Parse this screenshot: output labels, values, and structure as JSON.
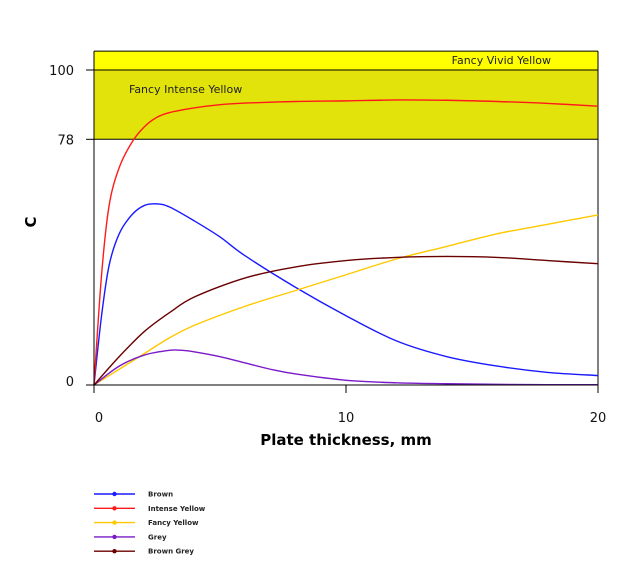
{
  "chart_data": {
    "type": "line",
    "xlabel": "Plate thickness, mm",
    "ylabel": "C",
    "xlim": [
      0,
      20
    ],
    "ylim": [
      0,
      110
    ],
    "x_ticks": [
      0,
      10,
      20
    ],
    "y_ticks": [
      0,
      78,
      100
    ],
    "bands": [
      {
        "label": "Fancy Vivid Yellow",
        "from": 100,
        "to": 106,
        "color": "#ffff00"
      },
      {
        "label": "Fancy Intense Yellow",
        "from": 78,
        "to": 100,
        "color": "#e3e30c"
      }
    ],
    "series": [
      {
        "name": "Brown",
        "color": "#1a1aff",
        "x": [
          0,
          0.3,
          0.6,
          1.0,
          1.5,
          2.0,
          2.5,
          3.0,
          4.0,
          5.0,
          6.0,
          8.0,
          10.0,
          12.0,
          14.0,
          16.0,
          18.0,
          20.0
        ],
        "y": [
          0,
          22,
          38,
          48,
          54,
          57,
          57.5,
          56.5,
          52,
          47,
          41,
          31,
          22,
          14,
          9,
          6,
          4,
          3
        ]
      },
      {
        "name": "Intense Yellow",
        "color": "#ff1a1a",
        "x": [
          0,
          0.3,
          0.6,
          1.0,
          1.5,
          2.0,
          2.5,
          3.0,
          4.0,
          5.0,
          6.0,
          8.0,
          10.0,
          12.0,
          14.0,
          16.0,
          18.0,
          20.0
        ],
        "y": [
          0,
          35,
          57,
          69,
          77,
          82,
          85,
          86.5,
          88,
          89,
          89.5,
          90,
          90.2,
          90.5,
          90.4,
          90,
          89.4,
          88.5
        ]
      },
      {
        "name": "Fancy Yellow",
        "color": "#ffc800",
        "x": [
          0,
          1,
          2,
          3,
          4,
          6,
          8,
          10,
          12,
          14,
          16,
          18,
          20
        ],
        "y": [
          0,
          5,
          10,
          15,
          19,
          25,
          30,
          35,
          40,
          44,
          48,
          51,
          54
        ]
      },
      {
        "name": "Grey",
        "color": "#7a1ac8",
        "x": [
          0,
          1,
          2,
          3,
          3.5,
          4,
          5,
          6,
          7,
          8,
          10,
          12,
          14,
          16,
          18,
          20
        ],
        "y": [
          0,
          6,
          9.5,
          11,
          11,
          10.5,
          9,
          7,
          5,
          3.5,
          1.5,
          0.7,
          0.4,
          0.2,
          0.1,
          0.1
        ]
      },
      {
        "name": "Brown Grey",
        "color": "#6b0000",
        "x": [
          0,
          1,
          2,
          3,
          4,
          6,
          8,
          10,
          12,
          14,
          16,
          18,
          20
        ],
        "y": [
          0,
          9,
          17,
          23,
          28,
          34,
          37.5,
          39.5,
          40.5,
          40.8,
          40.5,
          39.5,
          38.5
        ]
      }
    ]
  }
}
